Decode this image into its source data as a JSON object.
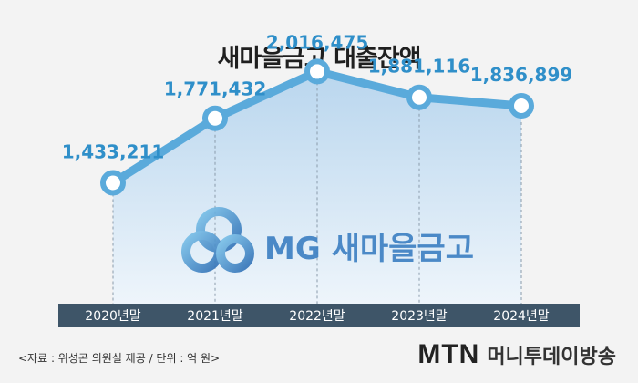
{
  "title": "새마을금고 대출잔액",
  "chart_data": {
    "type": "area",
    "categories": [
      "2020년말",
      "2021년말",
      "2022년말",
      "2023년말",
      "2024년말"
    ],
    "values": [
      1433211,
      1771432,
      2016475,
      1881116,
      1836899
    ],
    "value_labels": [
      "1,433,211",
      "1,771,432",
      "2,016,475",
      "1,881,116",
      "1,836,899"
    ],
    "ylim": [
      800000,
      2200000
    ],
    "grid": false,
    "colors": {
      "line": "#5aaadb",
      "area_top": "#b9d6ee",
      "area_bottom": "#eef5fb",
      "axis_bar": "#3e5568",
      "label": "#2f8fc9"
    }
  },
  "watermark": {
    "text": "MG 새마을금고"
  },
  "source": "<자료 : 위성곤 의원실 제공 / 단위 : 억 원>",
  "broadcaster": {
    "logo": "MTN",
    "name": "머니투데이방송"
  }
}
